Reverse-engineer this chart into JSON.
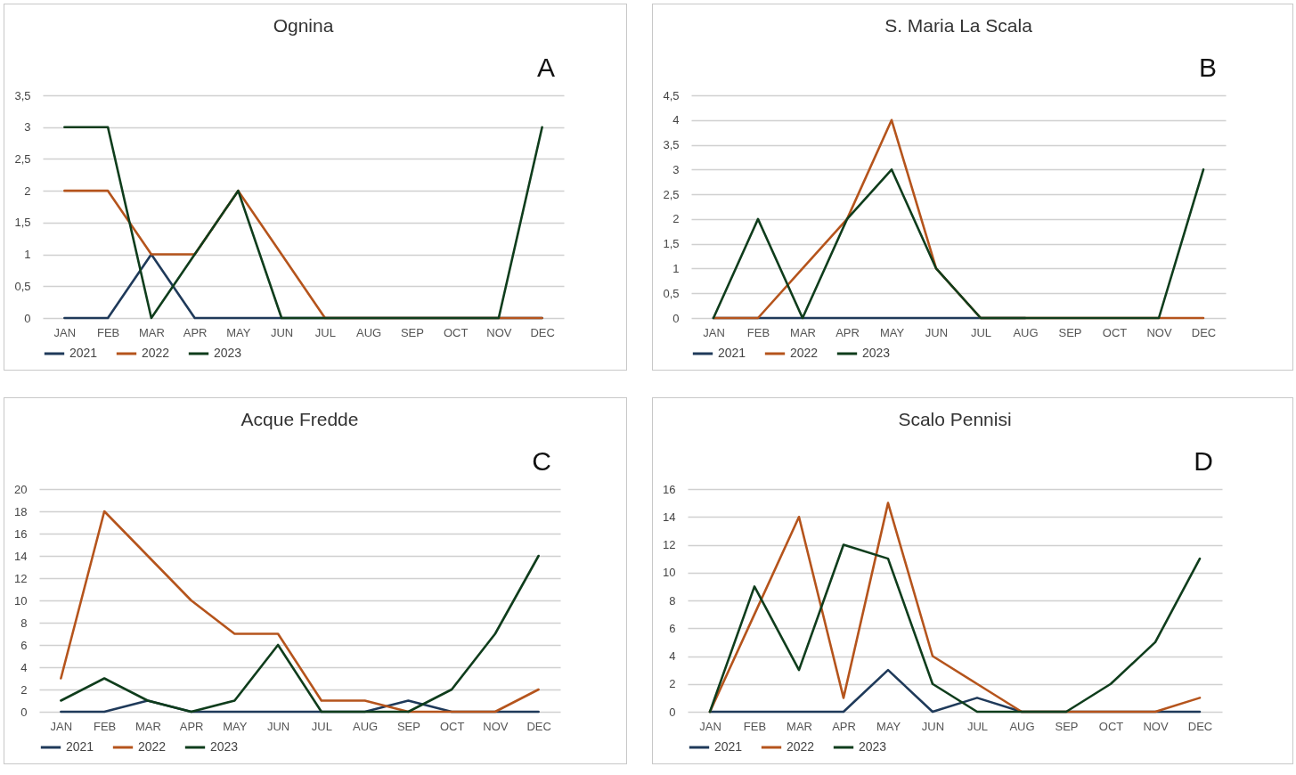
{
  "chart_data": [
    {
      "type": "line",
      "title": "Ognina",
      "annotations": [
        "A"
      ],
      "categories": [
        "JAN",
        "FEB",
        "MAR",
        "APR",
        "MAY",
        "JUN",
        "JUL",
        "AUG",
        "SEP",
        "OCT",
        "NOV",
        "DEC"
      ],
      "grid": "y",
      "legend": "bottom",
      "ylim": [
        0,
        3.5
      ],
      "yticks": [
        0,
        {
          "value": 0.5,
          "label": "0,5"
        },
        1,
        {
          "value": 1.5,
          "label": "1,5"
        },
        2,
        {
          "value": 2.5,
          "label": "2,5"
        },
        3,
        {
          "value": 3.5,
          "label": "3,5"
        }
      ],
      "series": [
        {
          "name": "2021",
          "color": "#1f3a5a",
          "values": [
            0,
            0,
            1,
            0,
            0,
            0,
            0,
            0,
            0,
            0,
            0,
            0
          ]
        },
        {
          "name": "2022",
          "color": "#b5541c",
          "values": [
            2,
            2,
            1,
            1,
            2,
            1,
            0,
            0,
            0,
            0,
            0,
            0
          ]
        },
        {
          "name": "2023",
          "color": "#0f3d1c",
          "values": [
            3,
            3,
            0,
            1,
            2,
            0,
            0,
            0,
            0,
            0,
            0,
            3
          ]
        }
      ]
    },
    {
      "type": "line",
      "title": "S. Maria La Scala",
      "annotations": [
        "B"
      ],
      "categories": [
        "JAN",
        "FEB",
        "MAR",
        "APR",
        "MAY",
        "JUN",
        "JUL",
        "AUG",
        "SEP",
        "OCT",
        "NOV",
        "DEC"
      ],
      "grid": "y",
      "legend": "bottom",
      "ylim": [
        0,
        4.5
      ],
      "yticks": [
        0,
        {
          "value": 0.5,
          "label": "0,5"
        },
        1,
        {
          "value": 1.5,
          "label": "1,5"
        },
        2,
        {
          "value": 2.5,
          "label": "2,5"
        },
        3,
        {
          "value": 3.5,
          "label": "3,5"
        },
        4,
        {
          "value": 4.5,
          "label": "4,5"
        }
      ],
      "series": [
        {
          "name": "2021",
          "color": "#1f3a5a",
          "values": [
            0,
            0,
            0,
            0,
            0,
            0,
            0,
            0,
            null,
            null,
            null,
            null
          ]
        },
        {
          "name": "2022",
          "color": "#b5541c",
          "values": [
            0,
            0,
            1,
            2,
            4,
            1,
            0,
            0,
            0,
            0,
            0,
            0
          ]
        },
        {
          "name": "2023",
          "color": "#0f3d1c",
          "values": [
            0,
            2,
            0,
            2,
            3,
            1,
            0,
            0,
            0,
            0,
            0,
            3
          ]
        }
      ]
    },
    {
      "type": "line",
      "title": "Acque Fredde",
      "annotations": [
        "C"
      ],
      "categories": [
        "JAN",
        "FEB",
        "MAR",
        "APR",
        "MAY",
        "JUN",
        "JUL",
        "AUG",
        "SEP",
        "OCT",
        "NOV",
        "DEC"
      ],
      "grid": "y",
      "legend": "bottom",
      "ylim": [
        0,
        20
      ],
      "yticks": [
        0,
        2,
        4,
        6,
        8,
        10,
        12,
        14,
        16,
        18,
        20
      ],
      "series": [
        {
          "name": "2021",
          "color": "#1f3a5a",
          "values": [
            0,
            0,
            1,
            0,
            0,
            0,
            0,
            0,
            1,
            0,
            0,
            0
          ]
        },
        {
          "name": "2022",
          "color": "#b5541c",
          "values": [
            3,
            18,
            14,
            10,
            7,
            7,
            1,
            1,
            0,
            0,
            0,
            2
          ]
        },
        {
          "name": "2023",
          "color": "#0f3d1c",
          "values": [
            1,
            3,
            1,
            0,
            1,
            6,
            0,
            0,
            0,
            2,
            7,
            14
          ]
        }
      ]
    },
    {
      "type": "line",
      "title": "Scalo Pennisi",
      "annotations": [
        "D"
      ],
      "categories": [
        "JAN",
        "FEB",
        "MAR",
        "APR",
        "MAY",
        "JUN",
        "JUL",
        "AUG",
        "SEP",
        "OCT",
        "NOV",
        "DEC"
      ],
      "grid": "y",
      "legend": "bottom",
      "ylim": [
        0,
        16
      ],
      "yticks": [
        0,
        2,
        4,
        6,
        8,
        10,
        12,
        14,
        16
      ],
      "series": [
        {
          "name": "2021",
          "color": "#1f3a5a",
          "values": [
            0,
            0,
            0,
            0,
            3,
            0,
            1,
            0,
            0,
            0,
            0,
            0
          ]
        },
        {
          "name": "2022",
          "color": "#b5541c",
          "values": [
            0,
            7,
            14,
            1,
            15,
            4,
            2,
            0,
            0,
            0,
            0,
            1
          ]
        },
        {
          "name": "2023",
          "color": "#0f3d1c",
          "values": [
            0,
            9,
            3,
            12,
            11,
            2,
            0,
            0,
            0,
            2,
            5,
            11
          ]
        }
      ]
    }
  ]
}
